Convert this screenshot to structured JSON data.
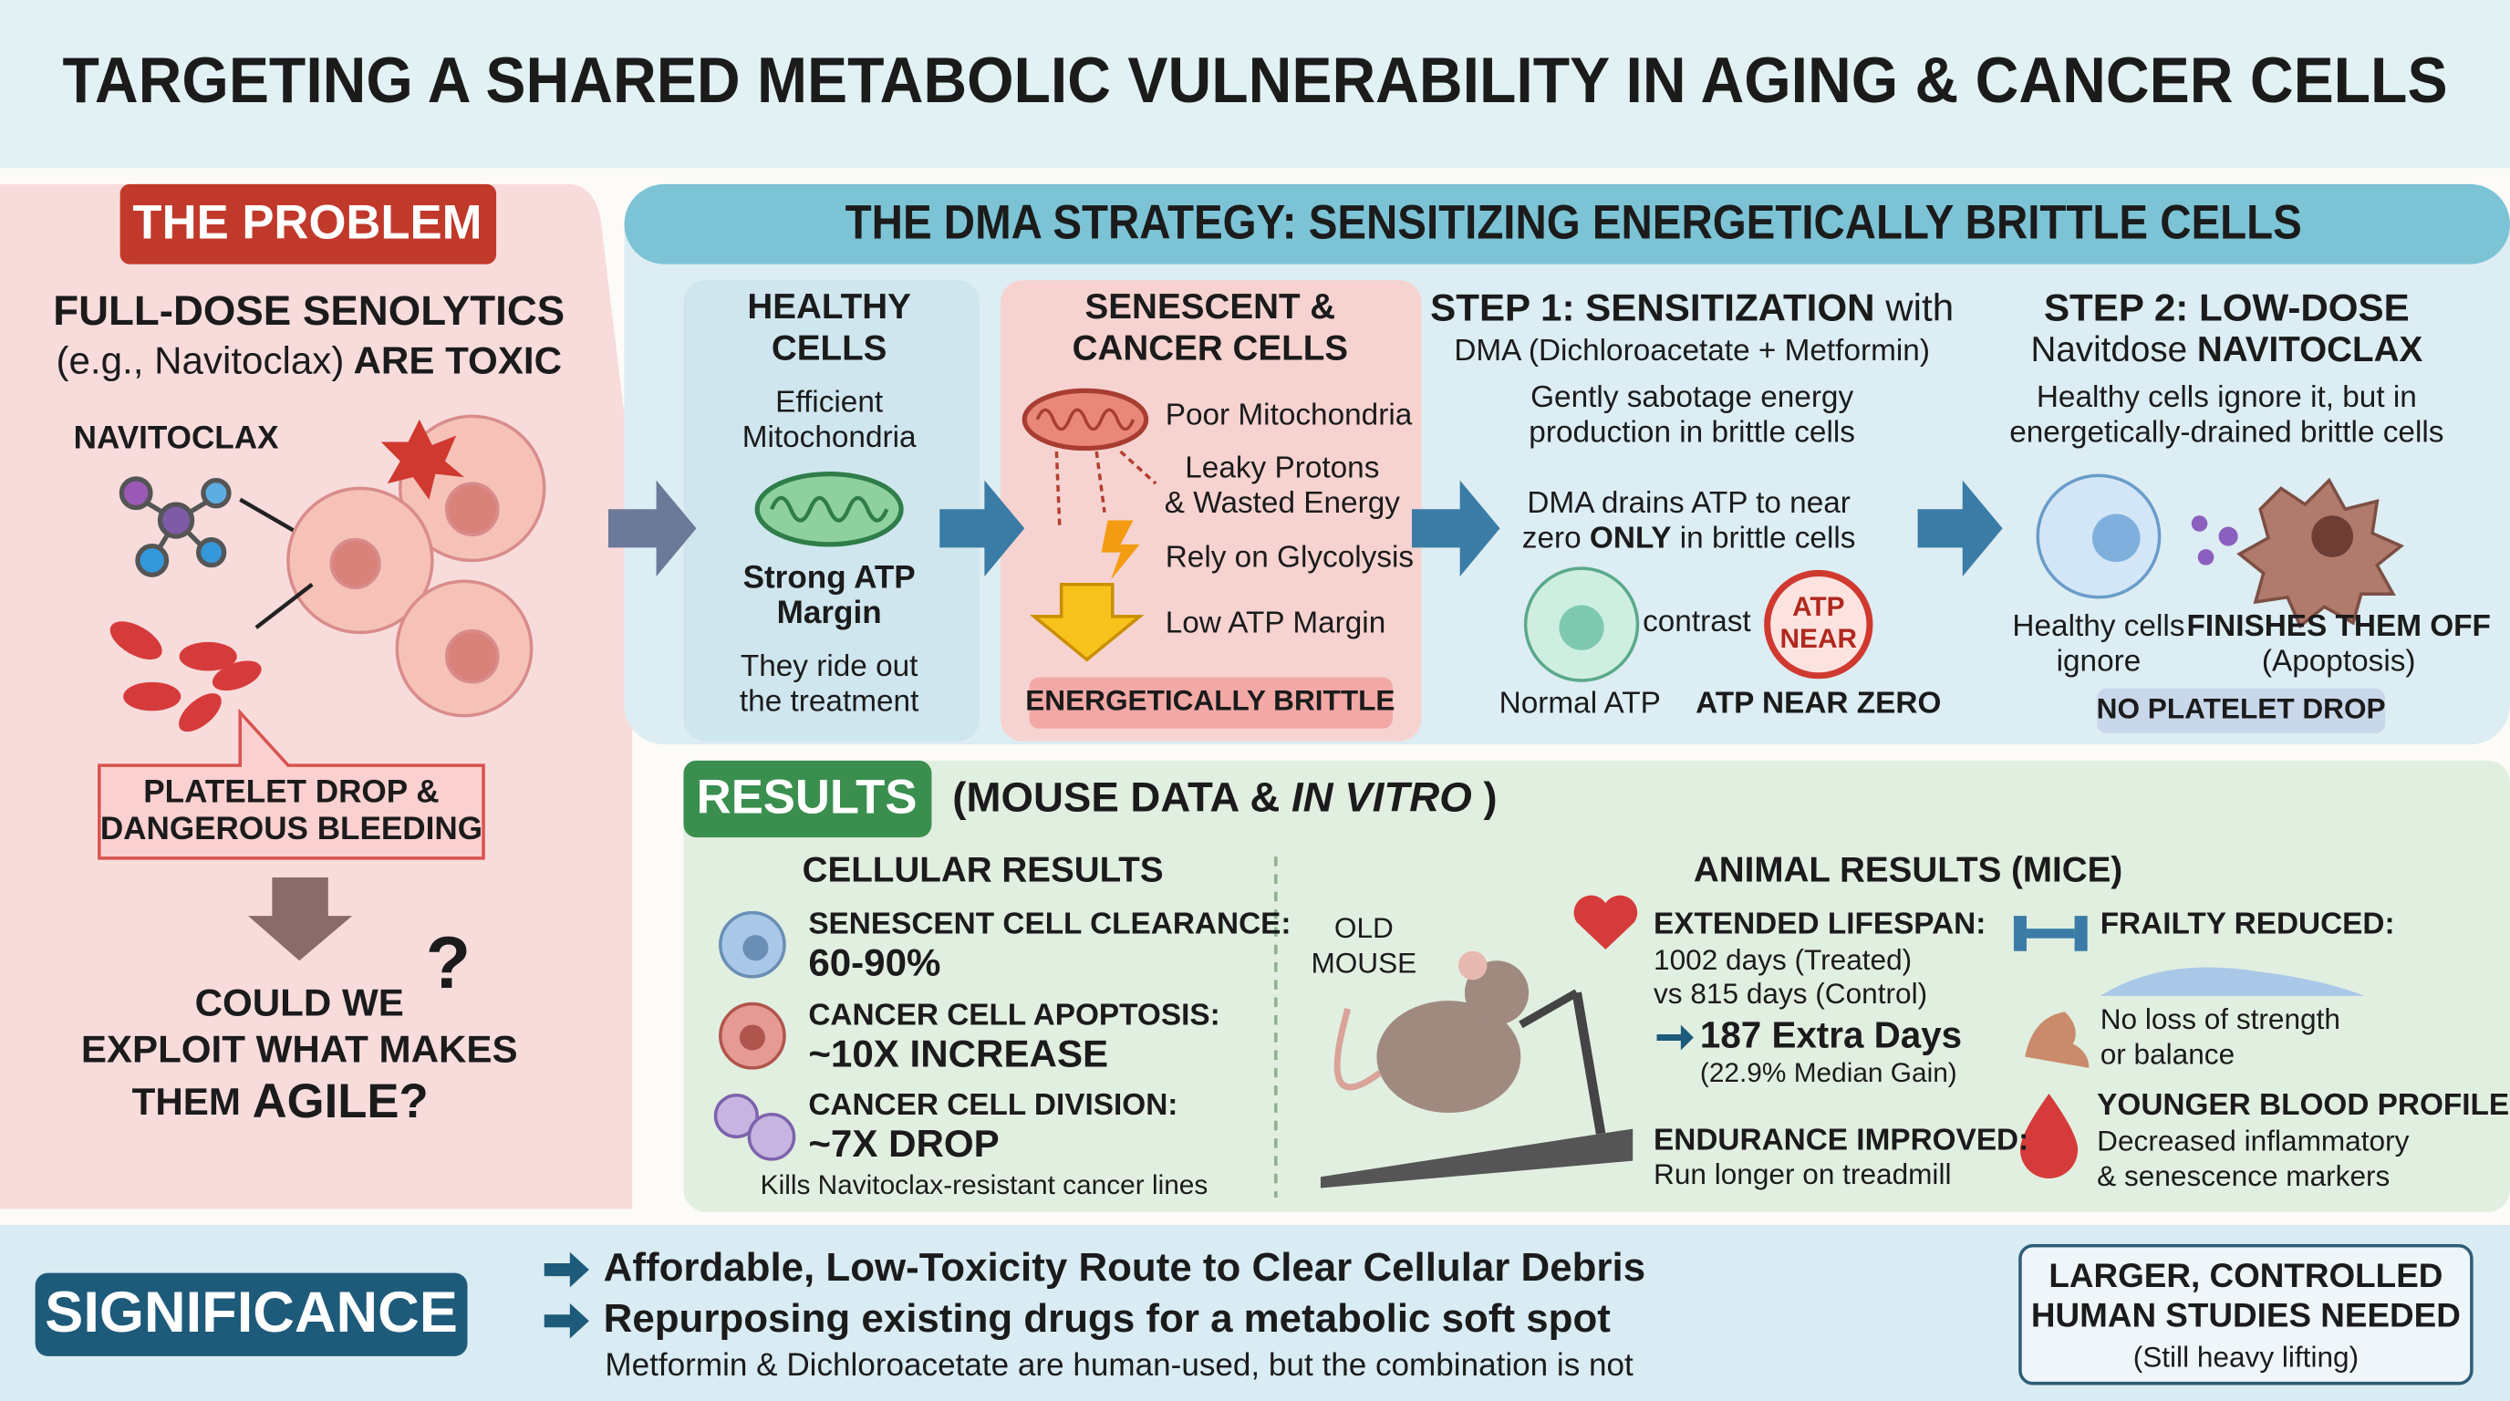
{
  "title": "TARGETING A SHARED METABOLIC VULNERABILITY IN AGING & CANCER CELLS",
  "problem": {
    "badge": "THE PROBLEM",
    "heading_1": "FULL-DOSE SENOLYTICS",
    "heading_2a": "(e.g., Navitoclax)",
    "heading_2b": "ARE TOXIC",
    "drug_label": "NAVITOCLAX",
    "callout": [
      "PLATELET DROP &",
      "DANGEROUS BLEEDING"
    ],
    "question": [
      "COULD WE",
      "EXPLOIT WHAT MAKES"
    ],
    "question_3a": "THEM",
    "question_3b": "AGILE?",
    "question_mark": "?"
  },
  "strategy": {
    "header": "THE DMA STRATEGY: SENSITIZING ENERGETICALLY BRITTLE CELLS",
    "healthy": {
      "title": [
        "HEALTHY",
        "CELLS"
      ],
      "sub": [
        "Efficient",
        "Mitochondria"
      ],
      "margin": [
        "Strong ATP",
        "Margin"
      ],
      "note": [
        "They ride out",
        "the treatment"
      ]
    },
    "brittle": {
      "title": [
        "SENESCENT &",
        "CANCER CELLS"
      ],
      "items": [
        "Poor Mitochondria",
        "Leaky Protons",
        "& Wasted Energy",
        "Rely on Glycolysis",
        "Low ATP Margin"
      ],
      "tag": "ENERGETICALLY BRITTLE"
    },
    "step1": {
      "title_bold": "STEP 1: SENSITIZATION",
      "title_rest": "with",
      "sub": "DMA (Dichloroacetate + Metformin)",
      "desc": [
        "Gently sabotage energy",
        "production in brittle cells"
      ],
      "drain_1": "DMA drains ATP to near",
      "drain_2a": "zero",
      "drain_2b": "ONLY",
      "drain_2c": "in brittle cells",
      "contrast": "contrast",
      "badge": [
        "ATP",
        "NEAR"
      ],
      "normal": "Normal ATP",
      "near_zero": "ATP NEAR ZERO"
    },
    "step2": {
      "title": "STEP 2: LOW-DOSE",
      "sub_a": "Navitdose",
      "sub_b": "NAVITOCLAX",
      "desc": [
        "Healthy cells ignore it, but in",
        "energetically-drained brittle cells"
      ],
      "ignore": [
        "Healthy cells",
        "ignore"
      ],
      "finish": "FINISHES THEM OFF",
      "apoptosis": "(Apoptosis)",
      "tag": "NO PLATELET DROP"
    }
  },
  "results": {
    "badge": "RESULTS",
    "sub_a": "(MOUSE DATA &",
    "sub_b": "IN VITRO",
    "sub_c": ")",
    "cellular": {
      "heading": "CELLULAR RESULTS",
      "items": [
        {
          "label": "SENESCENT CELL CLEARANCE:",
          "value": "60-90%"
        },
        {
          "label": "CANCER CELL APOPTOSIS:",
          "value": "~10X INCREASE"
        },
        {
          "label": "CANCER CELL DIVISION:",
          "value": "~7X DROP"
        }
      ],
      "note": "Kills Navitoclax-resistant cancer lines"
    },
    "animal": {
      "heading": "ANIMAL RESULTS (MICE)",
      "mouse": [
        "OLD",
        "MOUSE"
      ],
      "lifespan": {
        "label": "EXTENDED LIFESPAN:",
        "lines": [
          "1002 days (Treated)",
          "vs 815 days (Control)"
        ],
        "gain": "187 Extra Days",
        "median": "(22.9% Median Gain)"
      },
      "endurance": {
        "label": "ENDURANCE IMPROVED:",
        "text": "Run longer on treadmill"
      },
      "frailty": {
        "label": "FRAILTY REDUCED:",
        "lines": [
          "No loss of strength",
          "or balance"
        ]
      },
      "blood": {
        "label": "YOUNGER BLOOD PROFILE:",
        "lines": [
          "Decreased inflammatory",
          "& senescence markers"
        ]
      }
    }
  },
  "significance": {
    "badge": "SIGNIFICANCE",
    "points": [
      "Affordable, Low-Toxicity Route to Clear Cellular Debris",
      "Repurposing existing drugs for a metabolic soft spot"
    ],
    "note": "Metformin & Dichloroacetate are human-used, but the combination is not",
    "box": [
      "LARGER, CONTROLLED",
      "HUMAN STUDIES NEEDED"
    ],
    "box_note": "(Still heavy lifting)"
  }
}
